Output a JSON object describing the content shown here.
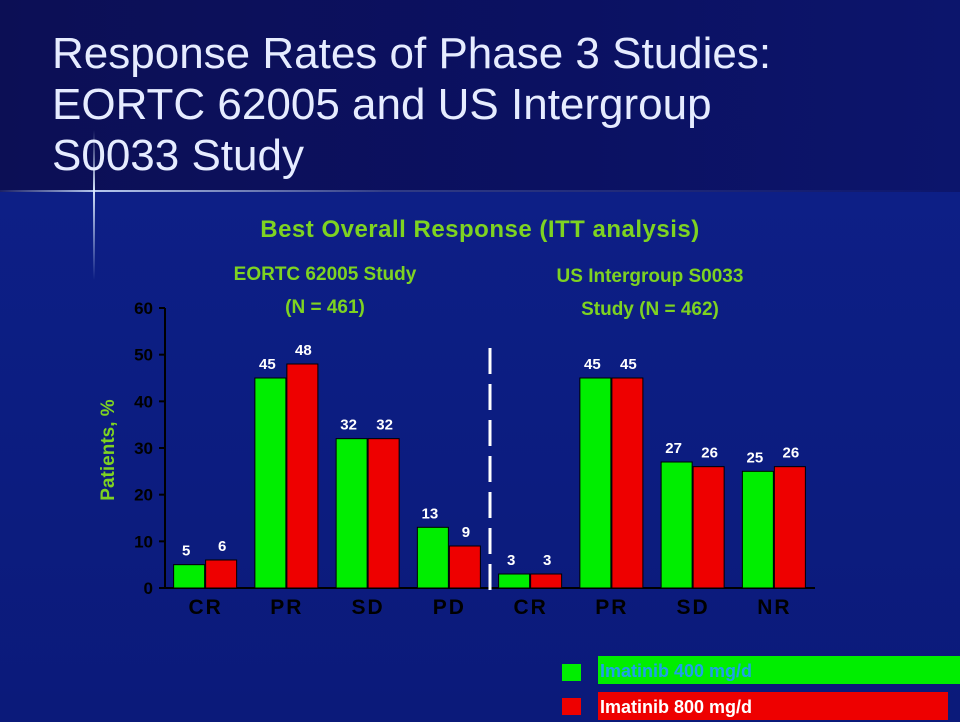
{
  "slide": {
    "title_lines": [
      "Response Rates of Phase 3 Studies:",
      "EORTC 62005 and US Intergroup",
      "S0033 Study"
    ],
    "subtitle": "Best Overall Response (ITT analysis)",
    "group1_title_lines": [
      "EORTC 62005 Study",
      "(N = 461)"
    ],
    "group2_title_lines": [
      "US Intergroup S0033",
      "Study (N = 462)"
    ]
  },
  "legend": [
    {
      "label": "Imatinib 400 mg/d",
      "color": "#00ee00"
    },
    {
      "label": "Imatinib 800 mg/d",
      "color": "#ee0000"
    }
  ],
  "colors": {
    "green": "#00ee00",
    "red": "#ee0000",
    "accent": "#7ed321",
    "axis": "#000000"
  },
  "chart_data": {
    "type": "bar",
    "categories": [
      "CR",
      "PR",
      "SD",
      "PD",
      "CR",
      "PR",
      "SD",
      "NR"
    ],
    "series": [
      {
        "name": "Imatinib 400 mg/d",
        "values": [
          5,
          45,
          32,
          13,
          3,
          45,
          27,
          25
        ]
      },
      {
        "name": "Imatinib 800 mg/d",
        "values": [
          6,
          48,
          32,
          9,
          3,
          45,
          26,
          26
        ]
      }
    ],
    "ylabel": "Patients, %",
    "ylim": [
      0,
      60
    ],
    "yticks": [
      0,
      10,
      20,
      30,
      40,
      50,
      60
    ],
    "groups": [
      "EORTC 62005 Study (N = 461)",
      "US Intergroup S0033 Study (N = 462)"
    ],
    "divider_after_index": 3
  }
}
